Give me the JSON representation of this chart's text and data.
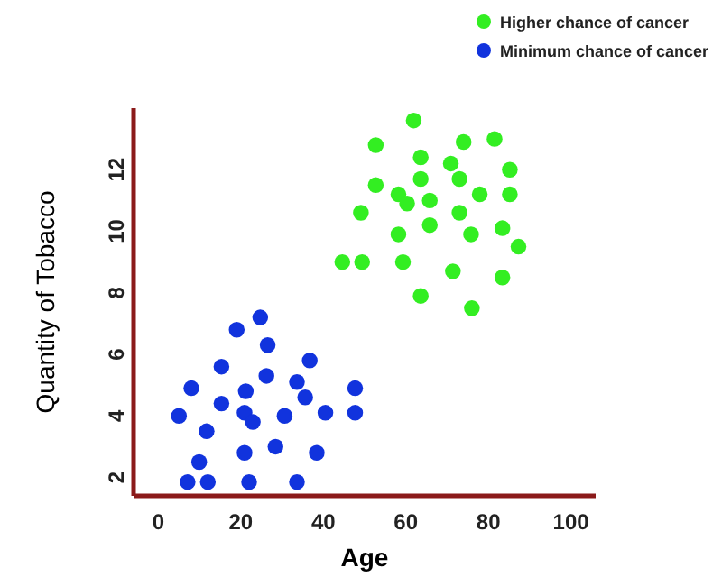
{
  "chart_data": {
    "type": "scatter",
    "xlabel": "Age",
    "ylabel": "Quantity of Tobacco",
    "xlim": [
      -6,
      106
    ],
    "ylim": [
      1.4,
      14
    ],
    "xticks": [
      0,
      20,
      40,
      60,
      80,
      100
    ],
    "yticks": [
      2,
      4,
      6,
      8,
      10,
      12
    ],
    "grid": false,
    "legend": "top right",
    "marker": "circle",
    "series": [
      {
        "name": "Higher chance of cancer",
        "color": "#33ee22",
        "x": [
          61.9,
          52.7,
          74,
          81.5,
          63.6,
          70.9,
          85.2,
          52.7,
          63.6,
          73,
          58.2,
          60.3,
          65.8,
          77.9,
          85.2,
          49.1,
          73,
          58.2,
          65.8,
          75.8,
          83.4,
          87.3,
          44.6,
          49.4,
          59.3,
          71.4,
          83.4,
          63.6,
          76
        ],
        "values": [
          13.6,
          12.8,
          12.9,
          13.0,
          12.4,
          12.2,
          12.0,
          11.5,
          11.7,
          11.7,
          11.2,
          10.9,
          11.0,
          11.2,
          11.2,
          10.6,
          10.6,
          9.9,
          10.2,
          9.9,
          10.1,
          9.5,
          9.0,
          9.0,
          9.0,
          8.7,
          8.5,
          7.9,
          7.5
        ]
      },
      {
        "name": "Minimum chance of cancer",
        "color": "#1133dd",
        "x": [
          24.7,
          19,
          26.5,
          15.3,
          36.7,
          26.2,
          8,
          21.2,
          33.6,
          47.7,
          15.3,
          35.6,
          5,
          20.9,
          22.9,
          30.6,
          40.5,
          47.7,
          11.7,
          20.9,
          28.4,
          38.4,
          9.9,
          7.1,
          12,
          22,
          33.6
        ],
        "values": [
          7.2,
          6.8,
          6.3,
          5.6,
          5.8,
          5.3,
          4.9,
          4.8,
          5.1,
          4.9,
          4.4,
          4.6,
          4.0,
          4.1,
          3.8,
          4.0,
          4.1,
          4.1,
          3.5,
          2.8,
          3.0,
          2.8,
          2.5,
          1.85,
          1.85,
          1.85,
          1.85
        ]
      }
    ]
  }
}
